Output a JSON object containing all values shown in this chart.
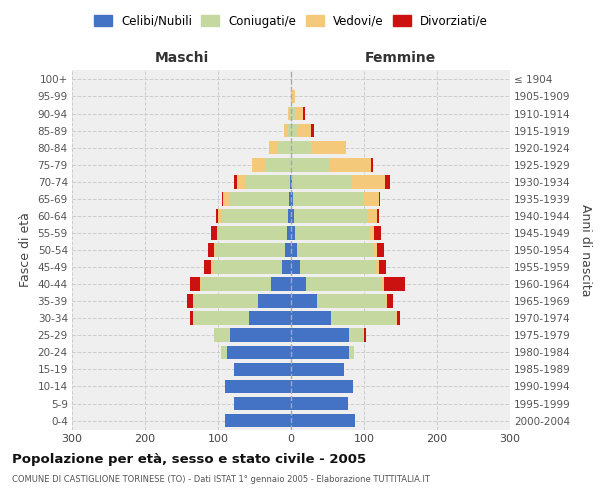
{
  "age_groups": [
    "0-4",
    "5-9",
    "10-14",
    "15-19",
    "20-24",
    "25-29",
    "30-34",
    "35-39",
    "40-44",
    "45-49",
    "50-54",
    "55-59",
    "60-64",
    "65-69",
    "70-74",
    "75-79",
    "80-84",
    "85-89",
    "90-94",
    "95-99",
    "100+"
  ],
  "birth_years": [
    "2000-2004",
    "1995-1999",
    "1990-1994",
    "1985-1989",
    "1980-1984",
    "1975-1979",
    "1970-1974",
    "1965-1969",
    "1960-1964",
    "1955-1959",
    "1950-1954",
    "1945-1949",
    "1940-1944",
    "1935-1939",
    "1930-1934",
    "1925-1929",
    "1920-1924",
    "1915-1919",
    "1910-1914",
    "1905-1909",
    "≤ 1904"
  ],
  "male_celibi": [
    90,
    78,
    90,
    78,
    88,
    83,
    58,
    45,
    28,
    12,
    8,
    5,
    4,
    3,
    2,
    0,
    0,
    0,
    0,
    0,
    0
  ],
  "male_coniugati": [
    0,
    0,
    0,
    0,
    8,
    22,
    75,
    88,
    95,
    95,
    95,
    95,
    92,
    82,
    60,
    35,
    18,
    5,
    2,
    0,
    0
  ],
  "male_vedovi": [
    0,
    0,
    0,
    0,
    0,
    1,
    1,
    1,
    2,
    2,
    2,
    2,
    4,
    8,
    12,
    18,
    12,
    4,
    2,
    0,
    0
  ],
  "male_divorziati": [
    0,
    0,
    0,
    0,
    0,
    0,
    4,
    8,
    14,
    10,
    9,
    8,
    3,
    2,
    4,
    0,
    0,
    0,
    0,
    0,
    0
  ],
  "female_nubili": [
    88,
    78,
    85,
    72,
    80,
    80,
    55,
    35,
    20,
    12,
    8,
    5,
    4,
    3,
    2,
    0,
    0,
    0,
    0,
    0,
    0
  ],
  "female_coniugate": [
    0,
    0,
    0,
    0,
    6,
    18,
    88,
    95,
    105,
    105,
    105,
    102,
    100,
    95,
    82,
    52,
    28,
    10,
    5,
    2,
    0
  ],
  "female_vedove": [
    0,
    0,
    0,
    0,
    0,
    2,
    2,
    2,
    3,
    4,
    5,
    7,
    14,
    22,
    45,
    58,
    48,
    18,
    12,
    4,
    0
  ],
  "female_divorziate": [
    0,
    0,
    0,
    0,
    0,
    3,
    4,
    8,
    28,
    9,
    9,
    9,
    2,
    2,
    6,
    2,
    0,
    4,
    2,
    0,
    0
  ],
  "colors_celibi_nubili": "#4472C4",
  "colors_coniugati_e": "#C5D8A0",
  "colors_vedovi_e": "#F5C97A",
  "colors_divorziati_e": "#CC1111",
  "xlim": 300,
  "title": "Popolazione per età, sesso e stato civile - 2005",
  "subtitle": "COMUNE DI CASTIGLIONE TORINESE (TO) - Dati ISTAT 1° gennaio 2005 - Elaborazione TUTTITALIA.IT",
  "xlabel_left": "Maschi",
  "xlabel_right": "Femmine",
  "ylabel_left": "Fasce di età",
  "ylabel_right": "Anni di nascita",
  "legend_labels": [
    "Celibi/Nubili",
    "Coniugati/e",
    "Vedovi/e",
    "Divorziati/e"
  ],
  "bg_color": "#FFFFFF",
  "plot_bg": "#EFEFEF"
}
